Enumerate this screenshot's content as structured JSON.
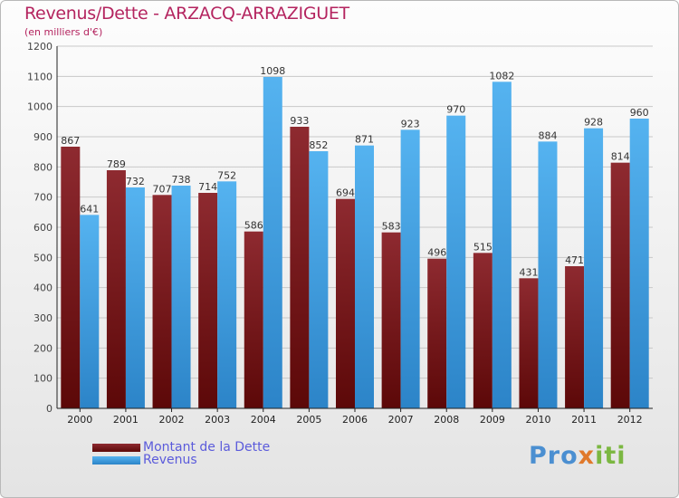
{
  "title": "Revenus/Dette - ARZACQ-ARRAZIGUET",
  "subtitle": "(en milliers d'€)",
  "legend": {
    "debt_label": "Montant de la Dette",
    "revenue_label": "Revenus"
  },
  "logo": {
    "part1": "Pro",
    "part2": "x",
    "part3": "iti"
  },
  "colors": {
    "title": "#b4245f",
    "debt": "#7a1a1f",
    "revenue": "#3d9ade",
    "legend_text": "#5b5bdb"
  },
  "chart_data": {
    "type": "bar",
    "categories": [
      "2000",
      "2001",
      "2002",
      "2003",
      "2004",
      "2005",
      "2006",
      "2007",
      "2008",
      "2009",
      "2010",
      "2011",
      "2012"
    ],
    "series": [
      {
        "name": "Montant de la Dette",
        "values": [
          867,
          789,
          707,
          714,
          586,
          933,
          694,
          583,
          496,
          515,
          431,
          471,
          814
        ]
      },
      {
        "name": "Revenus",
        "values": [
          641,
          732,
          738,
          752,
          1098,
          852,
          871,
          923,
          970,
          1082,
          884,
          928,
          960
        ]
      }
    ],
    "ylim": [
      0,
      1200
    ],
    "yticks": [
      0,
      100,
      200,
      300,
      400,
      500,
      600,
      700,
      800,
      900,
      1000,
      1100,
      1200
    ],
    "grid": true,
    "legend_position": "bottom-left"
  }
}
